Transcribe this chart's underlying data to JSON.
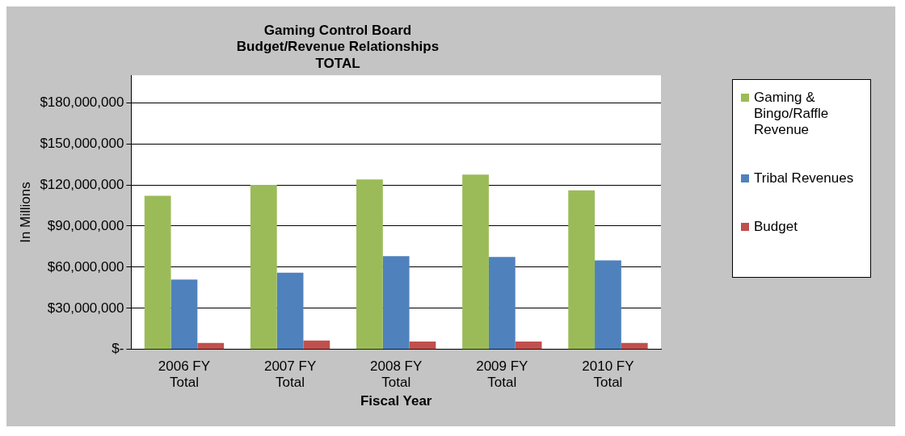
{
  "chart_data": {
    "type": "bar",
    "title": [
      "Gaming Control Board",
      "Budget/Revenue Relationships",
      "TOTAL"
    ],
    "xlabel": "Fiscal Year",
    "ylabel": "In Millions",
    "categories": [
      "2006 FY Total",
      "2007 FY Total",
      "2008 FY Total",
      "2009 FY Total",
      "2010 FY Total"
    ],
    "series": [
      {
        "name": "Gaming & Bingo/Raffle Revenue",
        "color": "#9bbb59",
        "values": [
          112000000,
          120000000,
          124000000,
          127500000,
          116000000
        ]
      },
      {
        "name": "Tribal Revenues",
        "color": "#4f81bd",
        "values": [
          51000000,
          56000000,
          68000000,
          67500000,
          65000000
        ]
      },
      {
        "name": "Budget",
        "color": "#c0504d",
        "values": [
          4800000,
          6500000,
          5800000,
          5800000,
          4800000
        ]
      }
    ],
    "ylim": [
      0,
      200000000
    ],
    "yticks": [
      {
        "value": 0,
        "label": "$-"
      },
      {
        "value": 30000000,
        "label": "$30,000,000"
      },
      {
        "value": 60000000,
        "label": "$60,000,000"
      },
      {
        "value": 90000000,
        "label": "$90,000,000"
      },
      {
        "value": 120000000,
        "label": "$120,000,000"
      },
      {
        "value": 150000000,
        "label": "$150,000,000"
      },
      {
        "value": 180000000,
        "label": "$180,000,000"
      }
    ],
    "grid": "y",
    "legend": "right"
  }
}
